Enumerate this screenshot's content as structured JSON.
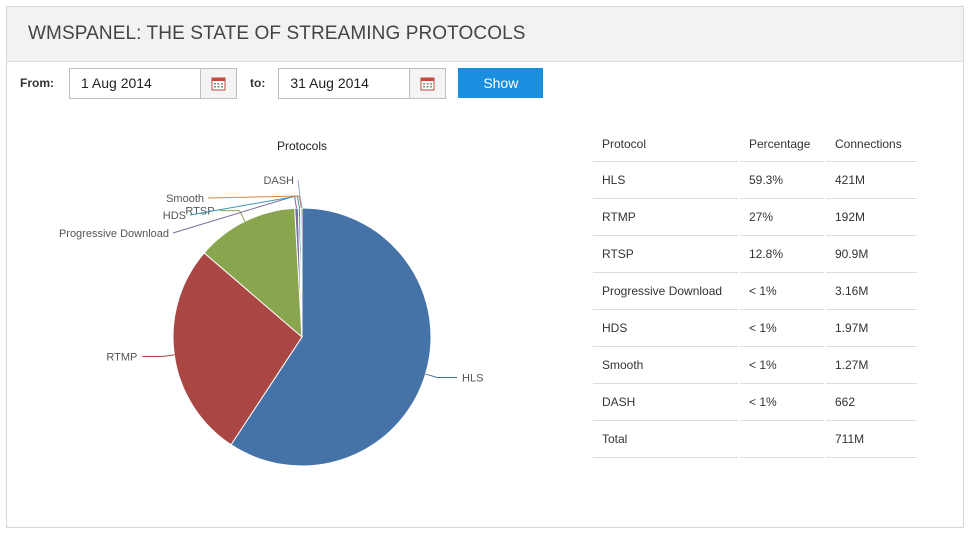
{
  "header": {
    "title": "WMSPANEL: THE STATE OF STREAMING PROTOCOLS"
  },
  "filter": {
    "from_label": "From:",
    "from_value": "1 Aug 2014",
    "to_label": "to:",
    "to_value": "31 Aug 2014",
    "show_label": "Show",
    "calendar_icon": "calendar-icon"
  },
  "table": {
    "headers": [
      "Protocol",
      "Percentage",
      "Connections"
    ],
    "rows": [
      {
        "protocol": "HLS",
        "percentage": "59.3%",
        "connections": "421M"
      },
      {
        "protocol": "RTMP",
        "percentage": "27%",
        "connections": "192M"
      },
      {
        "protocol": "RTSP",
        "percentage": "12.8%",
        "connections": "90.9M"
      },
      {
        "protocol": "Progressive Download",
        "percentage": "< 1%",
        "connections": "3.16M"
      },
      {
        "protocol": "HDS",
        "percentage": "< 1%",
        "connections": "1.97M"
      },
      {
        "protocol": "Smooth",
        "percentage": "< 1%",
        "connections": "1.27M"
      },
      {
        "protocol": "DASH",
        "percentage": "< 1%",
        "connections": "662"
      },
      {
        "protocol": "Total",
        "percentage": "",
        "connections": "711M"
      }
    ]
  },
  "chart_data": {
    "type": "pie",
    "title": "Protocols",
    "slices": [
      {
        "label": "HLS",
        "value": 421,
        "color": "#4572a7"
      },
      {
        "label": "RTMP",
        "value": 192,
        "color": "#aa4643"
      },
      {
        "label": "RTSP",
        "value": 90.9,
        "color": "#89a54e"
      },
      {
        "label": "Progressive Download",
        "value": 3.16,
        "color": "#80699b"
      },
      {
        "label": "HDS",
        "value": 1.97,
        "color": "#3d96ae"
      },
      {
        "label": "Smooth",
        "value": 1.27,
        "color": "#db843d"
      },
      {
        "label": "DASH",
        "value": 0.000662,
        "color": "#92a8cd"
      }
    ]
  }
}
